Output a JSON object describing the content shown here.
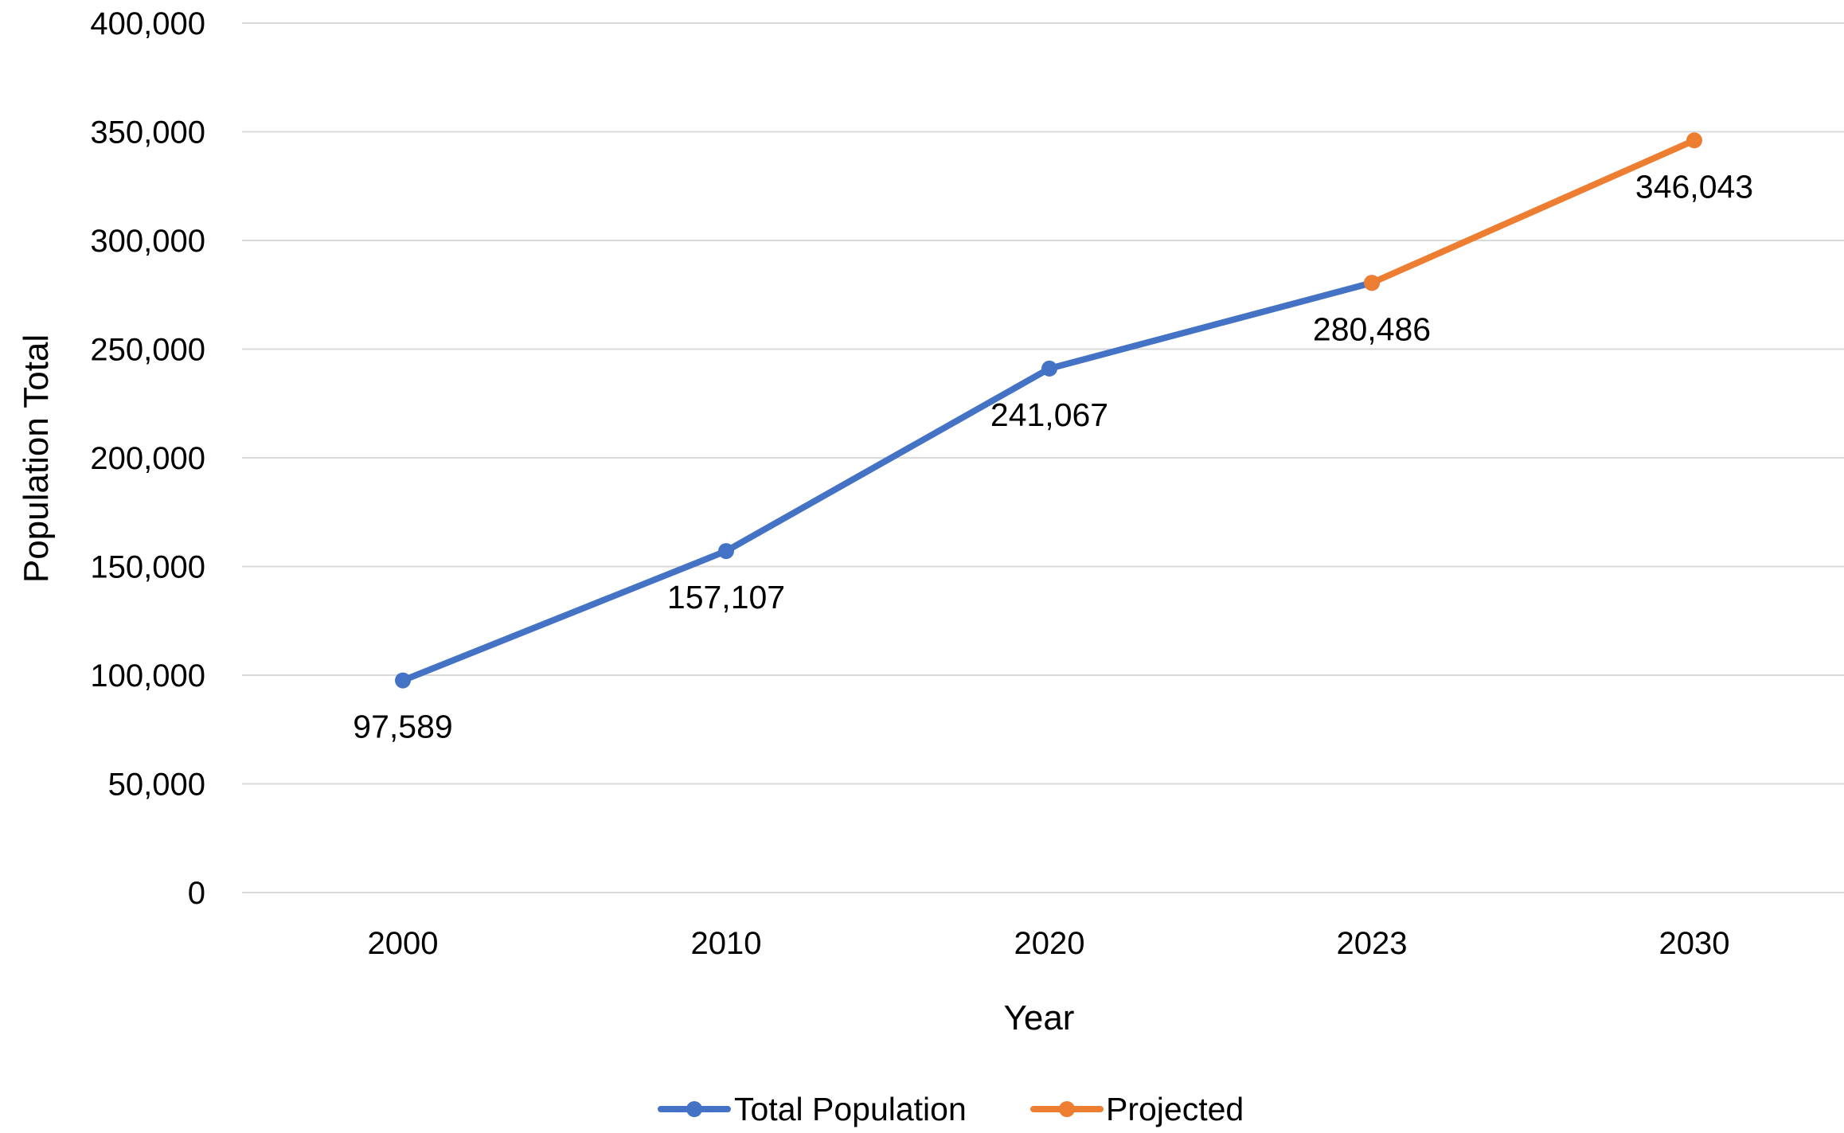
{
  "chart_data": {
    "type": "line",
    "categories": [
      "2000",
      "2010",
      "2020",
      "2023",
      "2030"
    ],
    "series": [
      {
        "name": "Total Population",
        "color": "#4472C4",
        "points": [
          {
            "x": "2000",
            "y": 97589,
            "label": "97,589"
          },
          {
            "x": "2010",
            "y": 157107,
            "label": "157,107"
          },
          {
            "x": "2020",
            "y": 241067,
            "label": "241,067"
          },
          {
            "x": "2023",
            "y": 280486,
            "label": "280,486"
          }
        ]
      },
      {
        "name": "Projected",
        "color": "#ED7D31",
        "points": [
          {
            "x": "2023",
            "y": 280486
          },
          {
            "x": "2030",
            "y": 346043,
            "label": "346,043"
          }
        ]
      }
    ],
    "xlabel": "Year",
    "ylabel": "Population Total",
    "ylim": [
      0,
      400000
    ],
    "yticks": [
      {
        "value": 0,
        "label": "0"
      },
      {
        "value": 50000,
        "label": "50,000"
      },
      {
        "value": 100000,
        "label": "100,000"
      },
      {
        "value": 150000,
        "label": "150,000"
      },
      {
        "value": 200000,
        "label": "200,000"
      },
      {
        "value": 250000,
        "label": "250,000"
      },
      {
        "value": 300000,
        "label": "300,000"
      },
      {
        "value": 350000,
        "label": "350,000"
      },
      {
        "value": 400000,
        "label": "400,000"
      }
    ],
    "grid": "horizontal",
    "gridColor": "#D9D9D9",
    "legend": {
      "position": "bottom",
      "entries": [
        "Total Population",
        "Projected"
      ]
    }
  }
}
